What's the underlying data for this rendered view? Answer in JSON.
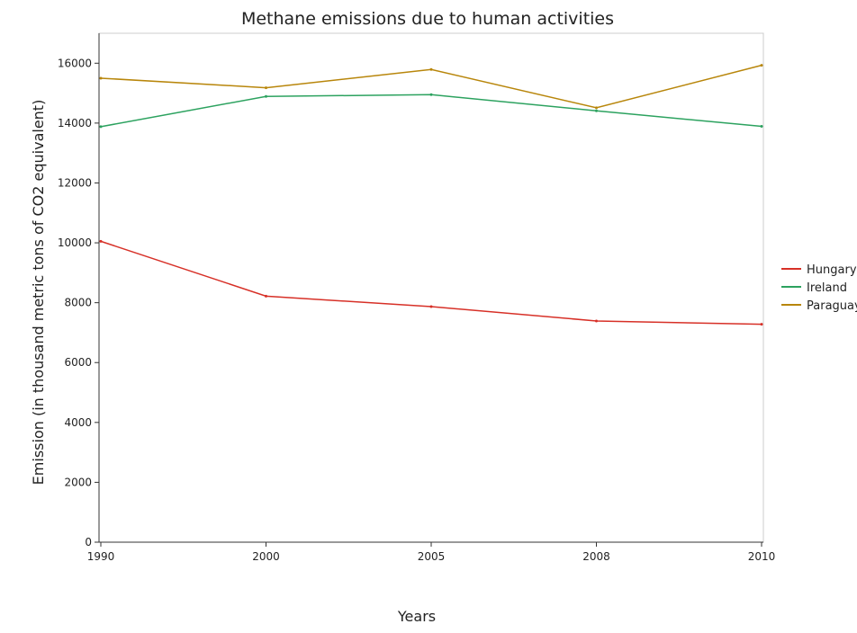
{
  "chart_data": {
    "type": "line",
    "title": "Methane emissions due to human activities",
    "xlabel": "Years",
    "ylabel": "Emission (in thousand metric tons of CO2 equivalent)",
    "categories": [
      "1990",
      "2000",
      "2005",
      "2008",
      "2010"
    ],
    "ylim": [
      0,
      17000
    ],
    "yticks": [
      0,
      2000,
      4000,
      6000,
      8000,
      10000,
      12000,
      14000,
      16000
    ],
    "ytick_labels": [
      "0",
      "2000",
      "4000",
      "6000",
      "8000",
      "10000",
      "12000",
      "14000",
      "16000"
    ],
    "grid": false,
    "legend_position": "right",
    "series": [
      {
        "name": "Hungary",
        "color": "#d73027",
        "values": [
          10050,
          8220,
          7870,
          7390,
          7280
        ]
      },
      {
        "name": "Ireland",
        "color": "#2ca25f",
        "values": [
          13880,
          14890,
          14950,
          14410,
          13890
        ]
      },
      {
        "name": "Paraguay",
        "color": "#b8860b",
        "values": [
          15500,
          15180,
          15790,
          14510,
          15930
        ]
      }
    ]
  }
}
